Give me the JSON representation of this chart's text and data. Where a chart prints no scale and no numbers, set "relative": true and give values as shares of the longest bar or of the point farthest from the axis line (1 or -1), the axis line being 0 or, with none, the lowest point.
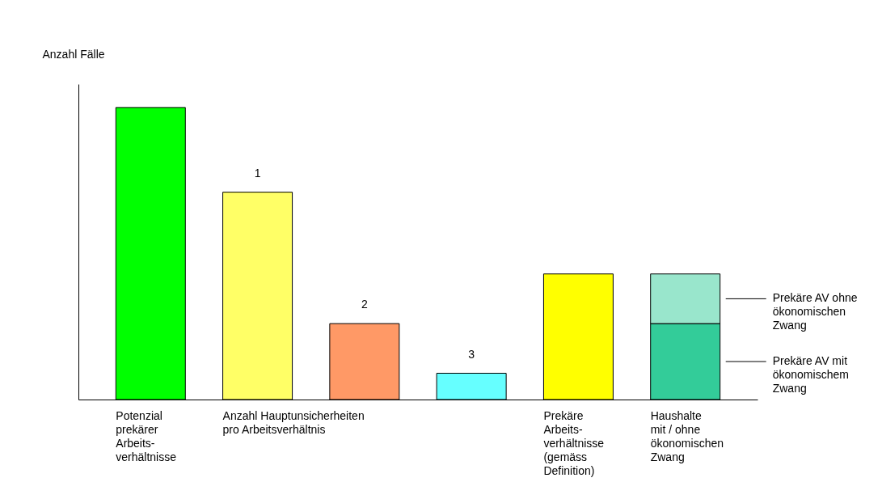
{
  "chart_data": {
    "type": "bar",
    "ylabel": "Anzahl Fälle",
    "relative": true,
    "stacked": true,
    "legend": "right",
    "categories": [
      "Potenzial prekärer Arbeits-verhältnisse",
      null,
      null,
      null,
      "Prekäre Arbeits-verhältnisse (gemäss Definition)",
      "Haushalte mit / ohne ökonomischen Zwang"
    ],
    "value_labels": [
      null,
      "1",
      "2",
      "3",
      null,
      null
    ],
    "series": [
      {
        "colors": [
          "#00ff00",
          "#ffff66",
          "#ff9966",
          "#66ffff",
          "#ffff00",
          null
        ],
        "values": [
          1,
          0.71,
          0.26,
          0.09,
          0.43,
          null
        ]
      },
      {
        "name": "Prekäre AV mit ökonomischem Zwang",
        "color": "#33cc99",
        "values": [
          null,
          null,
          null,
          null,
          null,
          0.26
        ]
      },
      {
        "name": "Prekäre AV ohne ökonomischen Zwang",
        "color": "#99e6cc",
        "values": [
          null,
          null,
          null,
          null,
          null,
          0.17
        ]
      }
    ],
    "annotations": [
      "Anzahl Hauptunsicherheiten pro Arbeitsverhältnis"
    ]
  }
}
